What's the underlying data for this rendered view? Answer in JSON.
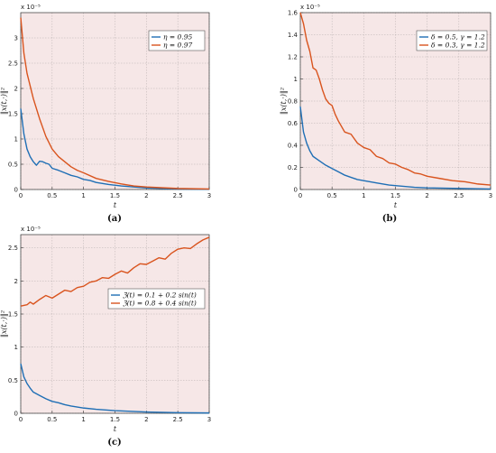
{
  "chart_data": [
    {
      "type": "line",
      "caption": "(a)",
      "ylabel": "‖x(t,·)‖²",
      "xlabel": "t",
      "exponent_label": "x 10⁻⁵",
      "xlim": [
        0,
        3
      ],
      "ylim": [
        0,
        3.5
      ],
      "xticks": [
        "0",
        "0.5",
        "1",
        "1.5",
        "2",
        "2.5",
        "3"
      ],
      "yticks": [
        "0",
        "0.5",
        "1",
        "1.5",
        "2",
        "2.5",
        "3"
      ],
      "legend_position": "top-right",
      "grid": true,
      "series": [
        {
          "name": "η = 0.95",
          "color": "#1f6fb5",
          "x": [
            0,
            0.05,
            0.1,
            0.15,
            0.2,
            0.25,
            0.3,
            0.35,
            0.4,
            0.45,
            0.5,
            0.6,
            0.7,
            0.8,
            0.9,
            1.0,
            1.1,
            1.2,
            1.4,
            1.6,
            1.8,
            2.0,
            2.5,
            3.0
          ],
          "y": [
            1.6,
            1.1,
            0.8,
            0.65,
            0.55,
            0.48,
            0.56,
            0.55,
            0.52,
            0.5,
            0.42,
            0.38,
            0.33,
            0.28,
            0.25,
            0.2,
            0.18,
            0.14,
            0.1,
            0.07,
            0.05,
            0.03,
            0.01,
            0.005
          ]
        },
        {
          "name": "η = 0.97",
          "color": "#d9541e",
          "x": [
            0,
            0.05,
            0.1,
            0.2,
            0.3,
            0.4,
            0.5,
            0.6,
            0.7,
            0.8,
            0.9,
            1.0,
            1.2,
            1.4,
            1.6,
            1.8,
            2.0,
            2.5,
            3.0
          ],
          "y": [
            3.4,
            2.7,
            2.3,
            1.8,
            1.4,
            1.05,
            0.8,
            0.65,
            0.55,
            0.45,
            0.38,
            0.33,
            0.22,
            0.16,
            0.11,
            0.07,
            0.05,
            0.02,
            0.01
          ]
        }
      ]
    },
    {
      "type": "line",
      "caption": "(b)",
      "ylabel": "‖x(t,·)‖²",
      "xlabel": "t",
      "exponent_label": "x 10⁻⁵",
      "xlim": [
        0,
        3
      ],
      "ylim": [
        0,
        1.6
      ],
      "xticks": [
        "0",
        "0.5",
        "1",
        "1.5",
        "2",
        "2.5",
        "3"
      ],
      "yticks": [
        "0",
        "0.2",
        "0.4",
        "0.6",
        "0.8",
        "1",
        "1.2",
        "1.4",
        "1.6"
      ],
      "legend_position": "top-right",
      "grid": true,
      "series": [
        {
          "name": "δ = 0.5, γ = 1.2",
          "color": "#1f6fb5",
          "x": [
            0,
            0.05,
            0.1,
            0.15,
            0.2,
            0.3,
            0.4,
            0.5,
            0.6,
            0.7,
            0.8,
            0.9,
            1.0,
            1.2,
            1.4,
            1.6,
            1.8,
            2.0,
            2.5,
            3.0
          ],
          "y": [
            0.75,
            0.52,
            0.42,
            0.35,
            0.3,
            0.26,
            0.22,
            0.19,
            0.16,
            0.13,
            0.11,
            0.09,
            0.08,
            0.06,
            0.04,
            0.03,
            0.02,
            0.015,
            0.01,
            0.005
          ]
        },
        {
          "name": "δ = 0.3, γ = 1.2",
          "color": "#d9541e",
          "x": [
            0,
            0.05,
            0.1,
            0.15,
            0.2,
            0.25,
            0.3,
            0.35,
            0.4,
            0.45,
            0.5,
            0.55,
            0.6,
            0.7,
            0.8,
            0.9,
            1.0,
            1.1,
            1.2,
            1.3,
            1.4,
            1.5,
            1.6,
            1.7,
            1.8,
            1.9,
            2.0,
            2.2,
            2.4,
            2.6,
            2.8,
            3.0
          ],
          "y": [
            1.6,
            1.5,
            1.35,
            1.25,
            1.1,
            1.08,
            1.0,
            0.9,
            0.82,
            0.78,
            0.76,
            0.68,
            0.62,
            0.52,
            0.5,
            0.42,
            0.38,
            0.36,
            0.3,
            0.28,
            0.24,
            0.23,
            0.2,
            0.18,
            0.15,
            0.14,
            0.12,
            0.1,
            0.08,
            0.07,
            0.05,
            0.04
          ]
        }
      ]
    },
    {
      "type": "line",
      "caption": "(c)",
      "ylabel": "‖x(t,·)‖²",
      "xlabel": "t",
      "exponent_label": "x 10⁻⁵",
      "xlim": [
        0,
        3
      ],
      "ylim": [
        0,
        2.7
      ],
      "xticks": [
        "0",
        "0.5",
        "1",
        "1.5",
        "2",
        "2.5",
        "3"
      ],
      "yticks": [
        "0",
        "0.5",
        "1",
        "1.5",
        "2",
        "2.5"
      ],
      "legend_position": "center-right",
      "grid": true,
      "series": [
        {
          "name": "ℨ(t) = 0.1 + 0.2 sin(t)",
          "color": "#1f6fb5",
          "x": [
            0,
            0.05,
            0.1,
            0.15,
            0.2,
            0.3,
            0.4,
            0.5,
            0.6,
            0.7,
            0.8,
            1.0,
            1.2,
            1.5,
            2.0,
            2.5,
            3.0
          ],
          "y": [
            0.75,
            0.55,
            0.45,
            0.38,
            0.32,
            0.27,
            0.22,
            0.18,
            0.16,
            0.13,
            0.11,
            0.08,
            0.06,
            0.04,
            0.02,
            0.01,
            0.005
          ]
        },
        {
          "name": "ℨ(t) = 0.8 + 0.4 sin(t)",
          "color": "#d9541e",
          "x": [
            0,
            0.1,
            0.15,
            0.2,
            0.3,
            0.4,
            0.5,
            0.6,
            0.7,
            0.8,
            0.9,
            1.0,
            1.1,
            1.2,
            1.3,
            1.4,
            1.5,
            1.6,
            1.7,
            1.8,
            1.9,
            2.0,
            2.1,
            2.2,
            2.3,
            2.4,
            2.5,
            2.6,
            2.7,
            2.8,
            2.9,
            3.0
          ],
          "y": [
            1.62,
            1.64,
            1.68,
            1.65,
            1.72,
            1.78,
            1.74,
            1.8,
            1.86,
            1.84,
            1.9,
            1.92,
            1.98,
            2.0,
            2.05,
            2.04,
            2.1,
            2.15,
            2.12,
            2.2,
            2.26,
            2.25,
            2.3,
            2.35,
            2.33,
            2.42,
            2.48,
            2.5,
            2.49,
            2.56,
            2.62,
            2.66
          ]
        }
      ]
    }
  ]
}
